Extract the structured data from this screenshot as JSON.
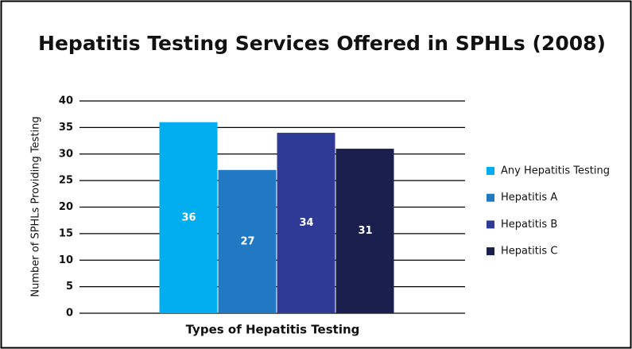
{
  "chart_data": {
    "type": "bar",
    "title": "Hepatitis Testing Services Offered in SPHLs (2008)",
    "x_label": "Types of Hepatitis Testing",
    "y_label": "Number of  SPHLs Providing Testing",
    "categories": [
      null
    ],
    "series": [
      {
        "name": "Any Hepatitis Testing",
        "color": "#00aeef",
        "values": [
          36
        ]
      },
      {
        "name": "Hepatitis A",
        "color": "#2178c3",
        "values": [
          27
        ]
      },
      {
        "name": "Hepatitis B",
        "color": "#2e3a95",
        "values": [
          34
        ]
      },
      {
        "name": "Hepatitis C",
        "color": "#1a1f4e",
        "values": [
          31
        ]
      }
    ],
    "ylim": [
      0,
      40
    ],
    "yticks": [
      0,
      5,
      10,
      15,
      20,
      25,
      30,
      35,
      40
    ],
    "grid": true,
    "legend": "right"
  }
}
